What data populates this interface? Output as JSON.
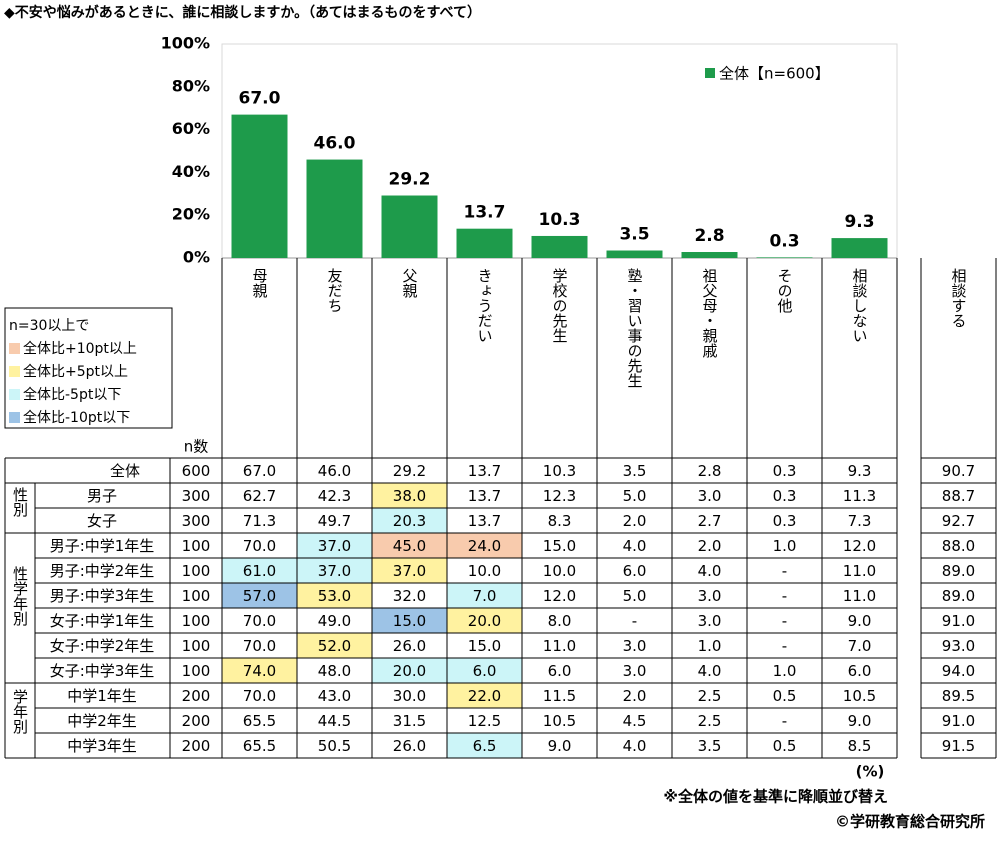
{
  "title": "◆不安や悩みがあるときに、誰に相談しますか。（あてはまるものをすべて）",
  "chart_data": {
    "type": "bar",
    "categories": [
      "母親",
      "友だち",
      "父親",
      "きょうだい",
      "学校の先生",
      "塾・習い事の先生",
      "祖父母・親戚",
      "その他",
      "相談しない"
    ],
    "series": [
      {
        "name": "全体【n=600】",
        "color": "#1e9b4b",
        "values": [
          67.0,
          46.0,
          29.2,
          13.7,
          10.3,
          3.5,
          2.8,
          0.3,
          9.3
        ],
        "value_labels": [
          "67.0",
          "46.0",
          "29.2",
          "13.7",
          "10.3",
          "3.5",
          "2.8",
          "0.3",
          "9.3"
        ]
      }
    ],
    "ylim": [
      0,
      100
    ],
    "yticks": [
      {
        "value": 0,
        "label": "0%"
      },
      {
        "value": 20,
        "label": "20%"
      },
      {
        "value": 40,
        "label": "40%"
      },
      {
        "value": 60,
        "label": "60%"
      },
      {
        "value": 80,
        "label": "80%"
      },
      {
        "value": 100,
        "label": "100%"
      }
    ],
    "grid": false,
    "legend": "upper right"
  },
  "legend": {
    "title": "n=30以上で",
    "items": [
      {
        "label": "全体比+10pt以上",
        "color": "#f8cbad"
      },
      {
        "label": "全体比+5pt以上",
        "color": "#fff2a0"
      },
      {
        "label": "全体比-5pt以下",
        "color": "#ccf5f8"
      },
      {
        "label": "全体比-10pt以下",
        "color": "#9dc3e6"
      }
    ]
  },
  "table": {
    "n_header": "n数",
    "extra_column": "相談する",
    "groups": [
      "性別",
      "性学年別",
      "学年別"
    ],
    "rows": [
      {
        "label": "全体",
        "n": "600",
        "cells": [
          "67.0",
          "46.0",
          "29.2",
          "13.7",
          "10.3",
          "3.5",
          "2.8",
          "0.3",
          "9.3",
          "90.7"
        ],
        "highlight": {}
      },
      {
        "label": "男子",
        "n": "300",
        "cells": [
          "62.7",
          "42.3",
          "38.0",
          "13.7",
          "12.3",
          "5.0",
          "3.0",
          "0.3",
          "11.3",
          "88.7"
        ],
        "highlight": {
          "2": 1
        }
      },
      {
        "label": "女子",
        "n": "300",
        "cells": [
          "71.3",
          "49.7",
          "20.3",
          "13.7",
          "8.3",
          "2.0",
          "2.7",
          "0.3",
          "7.3",
          "92.7"
        ],
        "highlight": {
          "2": 2
        }
      },
      {
        "label": "男子:中学1年生",
        "n": "100",
        "cells": [
          "70.0",
          "37.0",
          "45.0",
          "24.0",
          "15.0",
          "4.0",
          "2.0",
          "1.0",
          "12.0",
          "88.0"
        ],
        "highlight": {
          "1": 2,
          "2": 0,
          "3": 0
        }
      },
      {
        "label": "男子:中学2年生",
        "n": "100",
        "cells": [
          "61.0",
          "37.0",
          "37.0",
          "10.0",
          "10.0",
          "6.0",
          "4.0",
          "-",
          "11.0",
          "89.0"
        ],
        "highlight": {
          "0": 2,
          "1": 2,
          "2": 1
        }
      },
      {
        "label": "男子:中学3年生",
        "n": "100",
        "cells": [
          "57.0",
          "53.0",
          "32.0",
          "7.0",
          "12.0",
          "5.0",
          "3.0",
          "-",
          "11.0",
          "89.0"
        ],
        "highlight": {
          "0": 3,
          "1": 1,
          "3": 2
        }
      },
      {
        "label": "女子:中学1年生",
        "n": "100",
        "cells": [
          "70.0",
          "49.0",
          "15.0",
          "20.0",
          "8.0",
          "-",
          "3.0",
          "-",
          "9.0",
          "91.0"
        ],
        "highlight": {
          "2": 3,
          "3": 1
        }
      },
      {
        "label": "女子:中学2年生",
        "n": "100",
        "cells": [
          "70.0",
          "52.0",
          "26.0",
          "15.0",
          "11.0",
          "3.0",
          "1.0",
          "-",
          "7.0",
          "93.0"
        ],
        "highlight": {
          "1": 1
        }
      },
      {
        "label": "女子:中学3年生",
        "n": "100",
        "cells": [
          "74.0",
          "48.0",
          "20.0",
          "6.0",
          "6.0",
          "3.0",
          "4.0",
          "1.0",
          "6.0",
          "94.0"
        ],
        "highlight": {
          "0": 1,
          "2": 2,
          "3": 2
        }
      },
      {
        "label": "中学1年生",
        "n": "200",
        "cells": [
          "70.0",
          "43.0",
          "30.0",
          "22.0",
          "11.5",
          "2.0",
          "2.5",
          "0.5",
          "10.5",
          "89.5"
        ],
        "highlight": {
          "3": 1
        }
      },
      {
        "label": "中学2年生",
        "n": "200",
        "cells": [
          "65.5",
          "44.5",
          "31.5",
          "12.5",
          "10.5",
          "4.5",
          "2.5",
          "-",
          "9.0",
          "91.0"
        ],
        "highlight": {}
      },
      {
        "label": "中学3年生",
        "n": "200",
        "cells": [
          "65.5",
          "50.5",
          "26.0",
          "6.5",
          "9.0",
          "4.0",
          "3.5",
          "0.5",
          "8.5",
          "91.5"
        ],
        "highlight": {
          "3": 2
        }
      }
    ]
  },
  "notes": [
    "(%)",
    "※全体の値を基準に降順並び替え",
    "©学研教育総合研究所"
  ]
}
